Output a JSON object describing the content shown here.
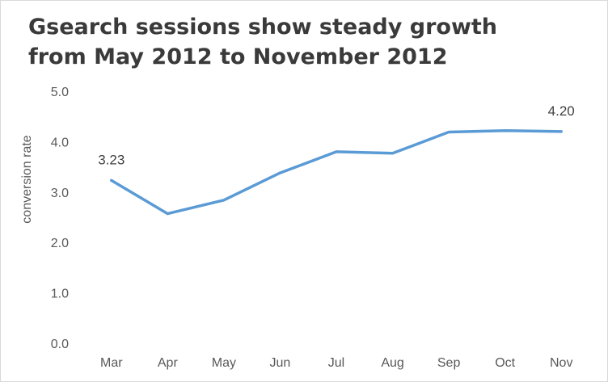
{
  "chart_data": {
    "type": "line",
    "title": "Gsearch sessions show steady growth from May 2012 to November 2012",
    "title_lines": [
      "Gsearch sessions show steady growth",
      "from May 2012 to November 2012"
    ],
    "xlabel": "",
    "ylabel": "conversion rate",
    "categories": [
      "Mar",
      "Apr",
      "May",
      "Jun",
      "Jul",
      "Aug",
      "Sep",
      "Oct",
      "Nov"
    ],
    "series": [
      {
        "values": [
          3.23,
          2.57,
          2.84,
          3.38,
          3.8,
          3.77,
          4.19,
          4.22,
          4.2
        ],
        "color": "#5b9bd5"
      }
    ],
    "data_labels": [
      {
        "index": 0,
        "text": "3.23"
      },
      {
        "index": 8,
        "text": "4.20"
      }
    ],
    "ylim": [
      0,
      5
    ],
    "yticks": [
      "0.0",
      "1.0",
      "2.0",
      "3.0",
      "4.0",
      "5.0"
    ],
    "grid": false,
    "legend": "none"
  }
}
